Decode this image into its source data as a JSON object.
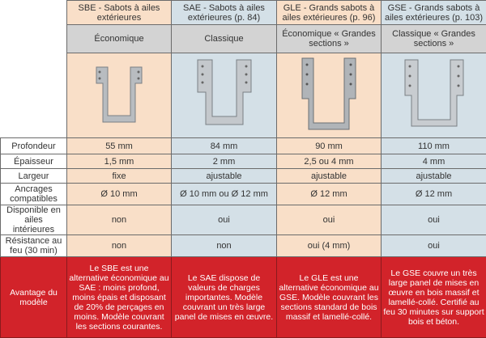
{
  "columns": [
    {
      "title": "SBE - Sabots à ailes extérieures",
      "category": "Économique",
      "image": "sbe-hanger-photo",
      "profondeur": "55 mm",
      "epaisseur": "1,5 mm",
      "largeur": "fixe",
      "ancrages": "Ø 10 mm",
      "interieures": "non",
      "feu": "non",
      "avantage": "Le SBE est une alternative économique au SAE : moins profond, moins épais et disposant de 20% de perçages en moins. Modèle couvrant les sections courantes."
    },
    {
      "title": "SAE - Sabots à ailes extérieures (p. 84)",
      "category": "Classique",
      "image": "sae-hanger-photo",
      "profondeur": "84 mm",
      "epaisseur": "2 mm",
      "largeur": "ajustable",
      "ancrages": "Ø 10 mm ou Ø 12 mm",
      "interieures": "oui",
      "feu": "non",
      "avantage": "Le SAE dispose de valeurs de charges importantes. Modèle couvrant un très large panel de mises en œuvre."
    },
    {
      "title": "GLE - Grands sabots à ailes extérieures (p. 96)",
      "category": "Économique « Grandes sections »",
      "image": "gle-hanger-photo",
      "profondeur": "90 mm",
      "epaisseur": "2,5 ou 4 mm",
      "largeur": "ajustable",
      "ancrages": "Ø 12 mm",
      "interieures": "oui",
      "feu": "oui (4 mm)",
      "avantage": "Le GLE est une alternative économique au GSE. Modèle couvrant les sections standard de bois massif et lamellé-collé."
    },
    {
      "title": "GSE - Grands sabots à ailes extérieures (p. 103)",
      "category": "Classique « Grandes sections »",
      "image": "gse-hanger-photo",
      "profondeur": "110 mm",
      "epaisseur": "4 mm",
      "largeur": "ajustable",
      "ancrages": "Ø 12 mm",
      "interieures": "oui",
      "feu": "oui",
      "avantage": "Le GSE couvre un très large panel de mises en œuvre en bois massif et lamellé-collé. Certifié au feu 30 minutes sur support bois et béton."
    }
  ],
  "row_labels": {
    "profondeur": "Profondeur",
    "epaisseur": "Épaisseur",
    "largeur": "Largeur",
    "ancrages": "Ancrages compatibles",
    "interieures": "Disponible en ailes intérieures",
    "feu": "Résistance au feu (30 min)",
    "avantage": "Avantage du modèle"
  },
  "colors": {
    "peach": "#f9dfc8",
    "blue": "#d4e0e7",
    "grey": "#d3d3d3",
    "red": "#d2232a"
  }
}
